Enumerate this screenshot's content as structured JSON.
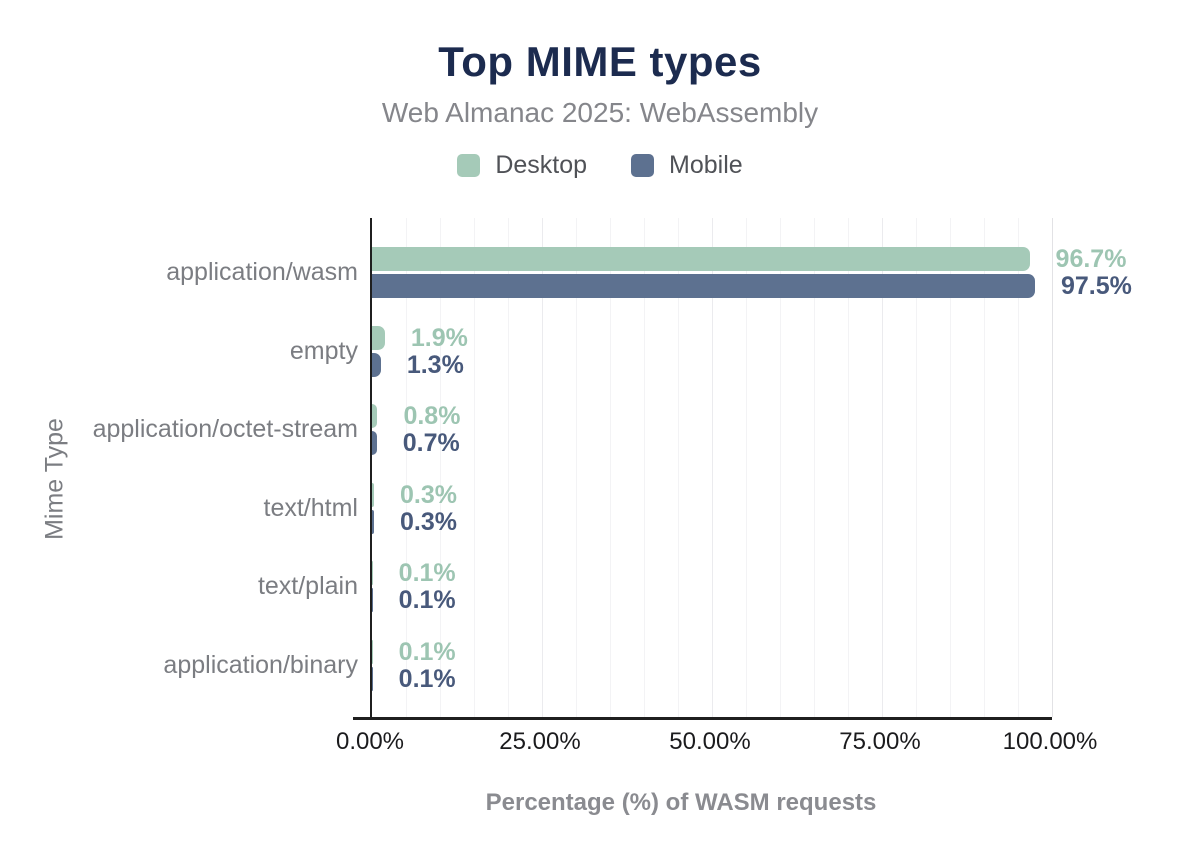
{
  "chart_data": {
    "type": "bar",
    "orientation": "horizontal",
    "title": "Top MIME types",
    "subtitle": "Web Almanac 2025: WebAssembly",
    "xlabel": "Percentage (%) of WASM requests",
    "ylabel": "Mime Type",
    "xlim": [
      0,
      100
    ],
    "x_ticks": [
      "0.00%",
      "25.00%",
      "50.00%",
      "75.00%",
      "100.00%"
    ],
    "grid": "vertical gridlines every 5%, light gray",
    "legend_position": "top-center",
    "categories": [
      "application/wasm",
      "empty",
      "application/octet-stream",
      "text/html",
      "text/plain",
      "application/binary"
    ],
    "series": [
      {
        "name": "Desktop",
        "color": "#a5cab8",
        "label_color": "#9dc5b2",
        "values": [
          96.7,
          1.9,
          0.8,
          0.3,
          0.1,
          0.1
        ],
        "labels": [
          "96.7%",
          "1.9%",
          "0.8%",
          "0.3%",
          "0.1%",
          "0.1%"
        ]
      },
      {
        "name": "Mobile",
        "color": "#5d7190",
        "label_color": "#48597b",
        "values": [
          97.5,
          1.3,
          0.7,
          0.3,
          0.1,
          0.1
        ],
        "labels": [
          "97.5%",
          "1.3%",
          "0.7%",
          "0.3%",
          "0.1%",
          "0.1%"
        ]
      }
    ],
    "colors": {
      "title": "#1c2b4f",
      "subtitle": "#85868b",
      "axis_line": "#1f1f1f",
      "tick_label": "#1b1b1d",
      "category_label": "#7b7d82",
      "axis_title": "#8a8b90"
    }
  }
}
